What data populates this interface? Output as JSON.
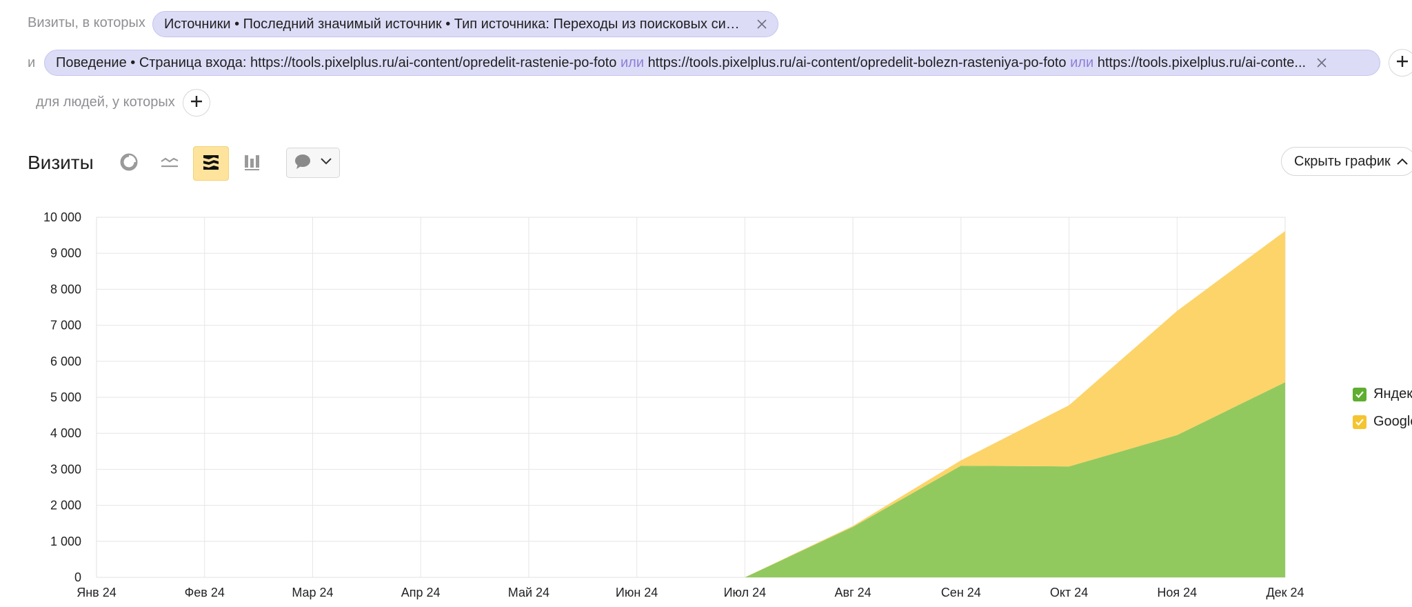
{
  "filters": {
    "row1_prefix": "Визиты, в которых",
    "row1_chip": "Источники • Последний значимый источник • Тип источника: Переходы из поисковых систем",
    "row2_prefix": "и",
    "row2_chip": {
      "part1": "Поведение • Страница входа: https://tools.pixelplus.ru/ai-content/opredelit-rastenie-po-foto",
      "or1": "или",
      "part2": "https://tools.pixelplus.ru/ai-content/opredelit-bolezn-rasteniya-po-foto",
      "or2": "или",
      "part3": "https://tools.pixelplus.ru/ai-conte..."
    },
    "row3_prefix": "для людей, у которых"
  },
  "toolbar": {
    "title": "Визиты",
    "hide_chart_label": "Скрыть график"
  },
  "icons": {
    "pie": "pie-chart-icon",
    "line": "line-chart-icon",
    "area": "area-chart-icon",
    "bar": "bar-chart-icon",
    "comment": "comment-icon",
    "chevron": "chevron-down-icon",
    "close": "close-icon",
    "plus": "plus-icon",
    "check": "check-icon"
  },
  "colors": {
    "chip_bg": "#dcdcf7",
    "active_tool": "#fde39c",
    "yandex": "#92c95e",
    "google": "#fdd469",
    "yandex_checkbox": "#5fae2f",
    "google_checkbox": "#f5c431"
  },
  "legend": [
    {
      "label": "Яндекс",
      "color": "#5fae2f"
    },
    {
      "label": "Google",
      "color": "#f5c431"
    }
  ],
  "chart_data": {
    "type": "area",
    "stacked": true,
    "categories": [
      "Янв 24",
      "Фев 24",
      "Мар 24",
      "Апр 24",
      "Май 24",
      "Июн 24",
      "Июл 24",
      "Авг 24",
      "Сен 24",
      "Окт 24",
      "Ноя 24",
      "Дек 24"
    ],
    "y_ticks": [
      "0",
      "1 000",
      "2 000",
      "3 000",
      "4 000",
      "5 000",
      "6 000",
      "7 000",
      "8 000",
      "9 000",
      "10 000"
    ],
    "ylim": [
      0,
      10000
    ],
    "grid": true,
    "legend_position": "right",
    "series": [
      {
        "name": "Яндекс",
        "color": "#92c95e",
        "values": [
          0,
          0,
          0,
          0,
          0,
          0,
          0,
          1400,
          3100,
          3080,
          3950,
          5420
        ]
      },
      {
        "name": "Google",
        "color": "#fdd469",
        "values": [
          0,
          0,
          0,
          0,
          0,
          0,
          0,
          30,
          150,
          1700,
          3450,
          4200
        ]
      }
    ]
  }
}
